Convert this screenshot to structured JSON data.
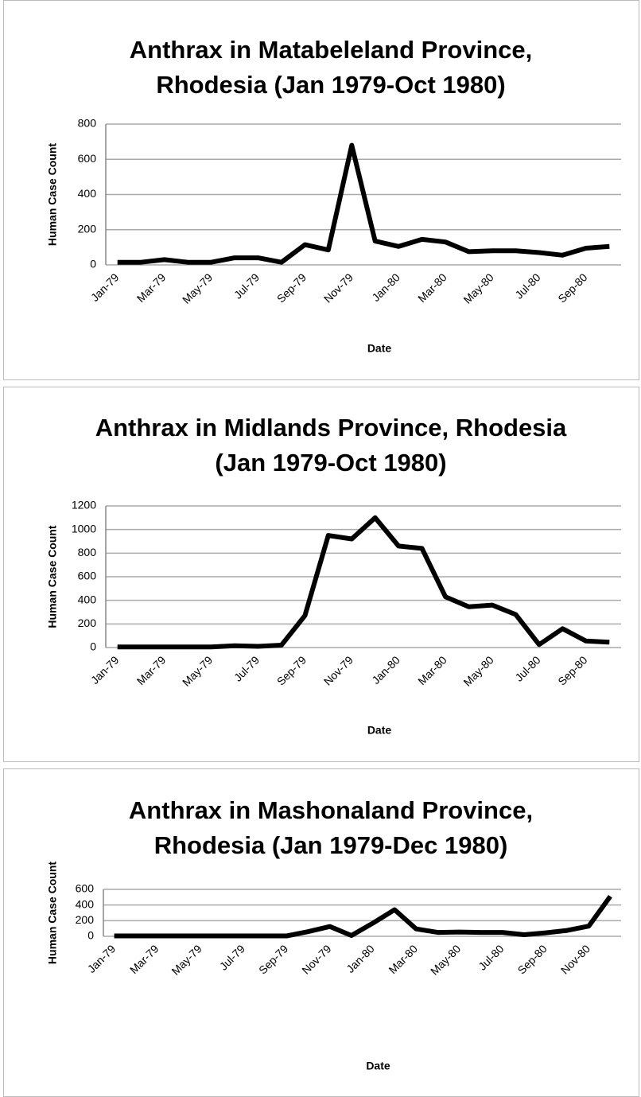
{
  "chart_data": [
    {
      "type": "line",
      "title": "Anthrax in Matabeleland Province, Rhodesia (Jan 1979-Oct 1980)",
      "x_label": "Date",
      "y_label": "Human Case Count",
      "categories": [
        "Jan-79",
        null,
        "Mar-79",
        null,
        "May-79",
        null,
        "Jul-79",
        null,
        "Sep-79",
        null,
        "Nov-79",
        null,
        "Jan-80",
        null,
        "Mar-80",
        null,
        "May-80",
        null,
        "Jul-80",
        null,
        "Sep-80",
        null
      ],
      "series": [
        {
          "name": "Human Case Count",
          "color": "#000000",
          "values": [
            15,
            15,
            30,
            15,
            15,
            40,
            40,
            15,
            115,
            85,
            680,
            135,
            105,
            145,
            130,
            75,
            80,
            80,
            70,
            55,
            95,
            105
          ]
        }
      ],
      "ylim": [
        0,
        800
      ],
      "yticks": [
        0,
        200,
        400,
        600,
        800
      ],
      "grid": true
    },
    {
      "type": "line",
      "title": "Anthrax in Midlands Province, Rhodesia (Jan 1979-Oct 1980)",
      "x_label": "Date",
      "y_label": "Human Case Count",
      "categories": [
        "Jan-79",
        null,
        "Mar-79",
        null,
        "May-79",
        null,
        "Jul-79",
        null,
        "Sep-79",
        null,
        "Nov-79",
        null,
        "Jan-80",
        null,
        "Mar-80",
        null,
        "May-80",
        null,
        "Jul-80",
        null,
        "Sep-80",
        null
      ],
      "series": [
        {
          "name": "Human Case Count",
          "color": "#000000",
          "values": [
            5,
            5,
            5,
            5,
            5,
            15,
            10,
            20,
            270,
            950,
            920,
            1100,
            860,
            840,
            430,
            345,
            360,
            280,
            25,
            160,
            55,
            45
          ]
        }
      ],
      "ylim": [
        0,
        1200
      ],
      "yticks": [
        0,
        200,
        400,
        600,
        800,
        1000,
        1200
      ],
      "grid": true
    },
    {
      "type": "line",
      "title": "Anthrax in Mashonaland Province, Rhodesia (Jan 1979-Dec 1980)",
      "x_label": "Date",
      "y_label": "Human Case Count",
      "categories": [
        "Jan-79",
        null,
        "Mar-79",
        null,
        "May-79",
        null,
        "Jul-79",
        null,
        "Sep-79",
        null,
        "Nov-79",
        null,
        "Jan-80",
        null,
        "Mar-80",
        null,
        "May-80",
        null,
        "Jul-80",
        null,
        "Sep-80",
        null,
        "Nov-80",
        null
      ],
      "series": [
        {
          "name": "Human Case Count",
          "color": "#000000",
          "values": [
            5,
            5,
            5,
            5,
            5,
            5,
            5,
            5,
            5,
            60,
            125,
            10,
            170,
            340,
            95,
            50,
            55,
            50,
            50,
            20,
            45,
            75,
            130,
            510
          ]
        }
      ],
      "ylim": [
        0,
        600
      ],
      "yticks": [
        0,
        200,
        400,
        600
      ],
      "grid": true
    }
  ]
}
